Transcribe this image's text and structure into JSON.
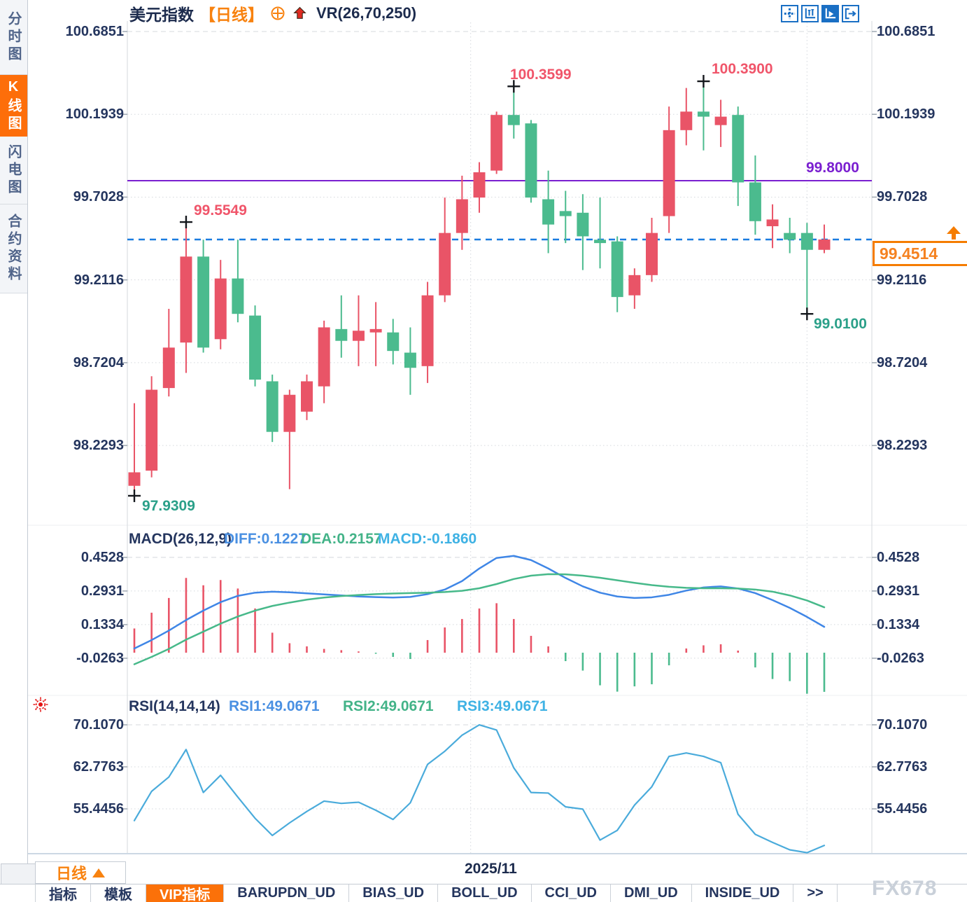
{
  "header": {
    "title": "美元指数",
    "period_tag": "【日线】",
    "vr_label": "VR(26,70,250)"
  },
  "sidebar": {
    "items": [
      {
        "label": "分时图"
      },
      {
        "label": "K线图"
      },
      {
        "label": "闪电图"
      },
      {
        "label": "合约资料"
      }
    ]
  },
  "price_axis": [
    "100.6851",
    "100.1939",
    "99.7028",
    "99.2116",
    "98.7204",
    "98.2293"
  ],
  "macd_axis": [
    "0.4528",
    "0.2931",
    "0.1334",
    "-0.0263"
  ],
  "rsi_axis": [
    "70.1070",
    "62.7763",
    "55.4456"
  ],
  "annotations": {
    "high1": "99.5549",
    "low1": "97.9309",
    "high2": "100.3599",
    "high3": "100.3900",
    "low2": "99.0100",
    "hline_label": "99.8000",
    "current_price": "99.4514"
  },
  "macd_header": {
    "title": "MACD(26,12,9)",
    "diff": "DIFF:0.1227",
    "dea": "DEA:0.2157",
    "macd": "MACD:-0.1860"
  },
  "rsi_header": {
    "title": "RSI(14,14,14)",
    "rsi1": "RSI1:49.0671",
    "rsi2": "RSI2:49.0671",
    "rsi3": "RSI3:49.0671"
  },
  "bottom": {
    "period_label": "日线",
    "date_label": "2025/11",
    "tabs": [
      "指标",
      "模板",
      "VIP指标",
      "BARUPDN_UD",
      "BIAS_UD",
      "BOLL_UD",
      "CCI_UD",
      "DMI_UD",
      "INSIDE_UD",
      ">>"
    ],
    "active_tab": "VIP指标",
    "watermark": "FX678"
  },
  "colors": {
    "up": "#e95467",
    "down": "#4bbb8e",
    "diff_line": "#3f86e6",
    "dea_line": "#47b98a",
    "rsi_line": "#4aabdb",
    "purple_line": "#7a1fd0",
    "current_line": "#1b7ce0",
    "accent_orange": "#f8820f"
  },
  "chart_data": {
    "type": "candlestick",
    "symbol": "美元指数",
    "period": "日线",
    "price_gridlines": [
      100.6851,
      100.1939,
      99.7028,
      99.2116,
      98.7204,
      98.2293
    ],
    "candles_ohlc": [
      [
        97.99,
        98.48,
        97.931,
        98.07
      ],
      [
        98.08,
        98.64,
        98.04,
        98.56
      ],
      [
        98.57,
        99.04,
        98.52,
        98.81
      ],
      [
        98.84,
        99.5549,
        98.66,
        99.35
      ],
      [
        99.35,
        99.45,
        98.78,
        98.81
      ],
      [
        98.86,
        99.33,
        98.8,
        99.22
      ],
      [
        99.22,
        99.45,
        98.96,
        99.01
      ],
      [
        99.0,
        99.06,
        98.58,
        98.62
      ],
      [
        98.61,
        98.65,
        98.25,
        98.31
      ],
      [
        98.31,
        98.56,
        97.97,
        98.53
      ],
      [
        98.43,
        98.65,
        98.38,
        98.61
      ],
      [
        98.58,
        98.97,
        98.48,
        98.93
      ],
      [
        98.92,
        99.12,
        98.75,
        98.85
      ],
      [
        98.85,
        99.12,
        98.7,
        98.91
      ],
      [
        98.9,
        99.08,
        98.7,
        98.92
      ],
      [
        98.9,
        98.98,
        98.71,
        98.79
      ],
      [
        98.78,
        98.93,
        98.53,
        98.69
      ],
      [
        98.7,
        99.2,
        98.6,
        99.12
      ],
      [
        99.12,
        99.7,
        99.08,
        99.49
      ],
      [
        99.49,
        99.83,
        99.39,
        99.69
      ],
      [
        99.7,
        99.91,
        99.61,
        99.85
      ],
      [
        99.86,
        100.21,
        99.84,
        100.19
      ],
      [
        100.19,
        100.3599,
        100.05,
        100.13
      ],
      [
        100.14,
        100.16,
        99.67,
        99.7
      ],
      [
        99.69,
        99.86,
        99.37,
        99.54
      ],
      [
        99.62,
        99.74,
        99.43,
        99.59
      ],
      [
        99.61,
        99.72,
        99.27,
        99.47
      ],
      [
        99.45,
        99.7,
        99.28,
        99.43
      ],
      [
        99.44,
        99.47,
        99.02,
        99.11
      ],
      [
        99.12,
        99.28,
        99.04,
        99.24
      ],
      [
        99.24,
        99.58,
        99.2,
        99.49
      ],
      [
        99.59,
        100.24,
        99.49,
        100.1
      ],
      [
        100.1,
        100.35,
        100.01,
        100.21
      ],
      [
        100.21,
        100.39,
        99.98,
        100.18
      ],
      [
        100.13,
        100.28,
        100.0,
        100.18
      ],
      [
        100.19,
        100.24,
        99.65,
        99.79
      ],
      [
        99.79,
        99.95,
        99.48,
        99.56
      ],
      [
        99.53,
        99.66,
        99.4,
        99.57
      ],
      [
        99.49,
        99.58,
        99.37,
        99.45
      ],
      [
        99.49,
        99.55,
        99.01,
        99.39
      ],
      [
        99.39,
        99.54,
        99.37,
        99.4514
      ]
    ],
    "support_line": 99.8,
    "last_price": 99.4514,
    "marked_points": [
      {
        "candle": 0,
        "price": 97.9309,
        "kind": "low",
        "label": "97.9309"
      },
      {
        "candle": 3,
        "price": 99.5549,
        "kind": "high",
        "label": "99.5549"
      },
      {
        "candle": 22,
        "price": 100.3599,
        "kind": "high",
        "label": "100.3599"
      },
      {
        "candle": 33,
        "price": 100.39,
        "kind": "high",
        "label": "100.3900"
      },
      {
        "candle": 39,
        "price": 99.01,
        "kind": "low",
        "label": "99.0100"
      }
    ],
    "month_gridline_candles": [
      19.5,
      39
    ],
    "month_label": "2025/11",
    "macd": {
      "params": "26,12,9",
      "gridlines": [
        0.4528,
        0.2931,
        0.1334,
        -0.0263
      ],
      "diff": [
        0.02,
        0.06,
        0.105,
        0.155,
        0.2,
        0.24,
        0.27,
        0.285,
        0.29,
        0.287,
        0.282,
        0.277,
        0.272,
        0.267,
        0.264,
        0.262,
        0.265,
        0.278,
        0.3,
        0.34,
        0.4,
        0.45,
        0.46,
        0.44,
        0.4,
        0.355,
        0.315,
        0.285,
        0.267,
        0.26,
        0.263,
        0.275,
        0.295,
        0.31,
        0.315,
        0.305,
        0.283,
        0.25,
        0.213,
        0.17,
        0.1227
      ],
      "dea": [
        -0.055,
        -0.02,
        0.018,
        0.062,
        0.1,
        0.138,
        0.172,
        0.2,
        0.222,
        0.238,
        0.252,
        0.262,
        0.269,
        0.274,
        0.278,
        0.281,
        0.283,
        0.285,
        0.288,
        0.294,
        0.306,
        0.326,
        0.35,
        0.366,
        0.373,
        0.372,
        0.366,
        0.356,
        0.344,
        0.332,
        0.321,
        0.313,
        0.308,
        0.306,
        0.306,
        0.305,
        0.3,
        0.29,
        0.272,
        0.248,
        0.2157
      ],
      "hist": [
        0.115,
        0.19,
        0.26,
        0.355,
        0.32,
        0.345,
        0.305,
        0.21,
        0.095,
        0.045,
        0.03,
        0.018,
        0.012,
        0.006,
        -0.005,
        -0.02,
        -0.03,
        0.06,
        0.12,
        0.16,
        0.21,
        0.235,
        0.16,
        0.08,
        0.03,
        -0.04,
        -0.085,
        -0.155,
        -0.185,
        -0.16,
        -0.15,
        -0.06,
        0.02,
        0.035,
        0.04,
        0.01,
        -0.07,
        -0.125,
        -0.135,
        -0.195,
        -0.186
      ],
      "last": {
        "diff": 0.1227,
        "dea": 0.2157,
        "macd": -0.186
      }
    },
    "rsi": {
      "params": "14,14,14",
      "gridlines": [
        70.107,
        62.7763,
        55.4456
      ],
      "values": [
        53.4,
        58.5,
        61.0,
        65.8,
        58.3,
        61.3,
        57.5,
        53.8,
        50.8,
        53.0,
        55.0,
        56.8,
        56.4,
        56.6,
        55.2,
        53.6,
        56.5,
        63.2,
        65.5,
        68.3,
        70.1,
        69.2,
        62.6,
        58.3,
        58.2,
        55.8,
        55.4,
        50.0,
        51.7,
        56.1,
        59.3,
        64.6,
        65.2,
        64.6,
        63.5,
        54.5,
        51.0,
        49.6,
        48.3,
        47.8,
        49.0671
      ],
      "last": 49.0671
    }
  }
}
